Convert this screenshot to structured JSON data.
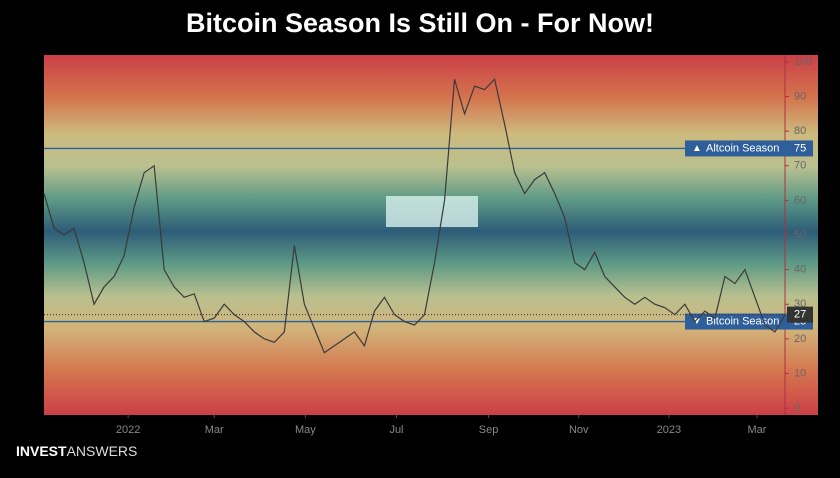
{
  "chart_data": {
    "type": "line",
    "title": "Bitcoin Season Is Still On - For Now!",
    "brand": {
      "bold": "INVEST",
      "light": "ANSWERS"
    },
    "color": "#3a3a3a",
    "values": [
      62,
      52,
      50,
      52,
      42,
      30,
      35,
      38,
      44,
      58,
      68,
      70,
      40,
      35,
      32,
      33,
      25,
      26,
      30,
      27,
      25,
      22,
      20,
      19,
      22,
      47,
      30,
      23,
      16,
      18,
      20,
      22,
      18,
      28,
      32,
      27,
      25,
      24,
      27,
      42,
      60,
      95,
      85,
      93,
      92,
      95,
      82,
      68,
      62,
      66,
      68,
      62,
      55,
      42,
      40,
      45,
      38,
      35,
      32,
      30,
      32,
      30,
      29,
      27,
      30,
      25,
      28,
      26,
      38,
      36,
      40,
      32,
      24,
      22,
      27
    ],
    "xlim": [
      0,
      74
    ],
    "xticks": [
      {
        "value": 8.4,
        "label": "2022"
      },
      {
        "value": 17.0,
        "label": "Mar"
      },
      {
        "value": 26.1,
        "label": "May"
      },
      {
        "value": 35.2,
        "label": "Jul"
      },
      {
        "value": 44.4,
        "label": "Sep"
      },
      {
        "value": 53.4,
        "label": "Nov"
      },
      {
        "value": 62.4,
        "label": "2023"
      },
      {
        "value": 71.2,
        "label": "Mar"
      }
    ],
    "ylim": [
      -2,
      102
    ],
    "yticks": [
      0,
      10,
      20,
      30,
      40,
      50,
      60,
      70,
      80,
      90,
      100
    ],
    "reference_lines": [
      {
        "label": "Altcoin Season",
        "value": 75,
        "symbol": "▲"
      },
      {
        "label": "Bitcoin Season",
        "value": 25,
        "symbol": "▼"
      }
    ]
  }
}
